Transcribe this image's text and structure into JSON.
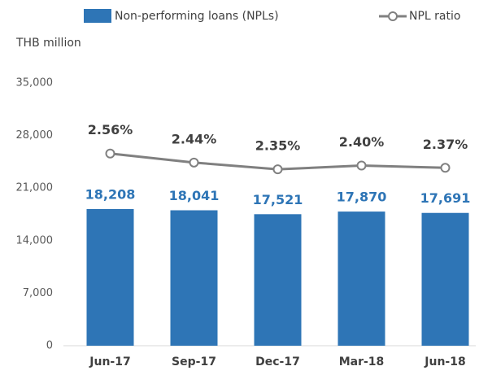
{
  "chart_data": {
    "type": "bar_line",
    "y_label": "THB million",
    "categories": [
      "Jun-17",
      "Sep-17",
      "Dec-17",
      "Mar-18",
      "Jun-18"
    ],
    "series": [
      {
        "name": "Non-performing loans (NPLs)",
        "type": "bar",
        "color": "#2e75b6",
        "values": [
          18208,
          18041,
          17521,
          17870,
          17691
        ],
        "value_labels": [
          "18,208",
          "18,041",
          "17,521",
          "17,870",
          "17,691"
        ]
      },
      {
        "name": "NPL ratio",
        "type": "line",
        "axis": "y2",
        "color": "#808080",
        "values": [
          2.56,
          2.44,
          2.35,
          2.4,
          2.37
        ],
        "value_labels": [
          "2.56%",
          "2.44%",
          "2.35%",
          "2.40%",
          "2.37%"
        ]
      }
    ],
    "ylim": [
      0,
      35000
    ],
    "yticks": [
      0,
      {
        "value": 7000,
        "label": "7,000"
      },
      {
        "value": 14000,
        "label": "14,000"
      },
      {
        "value": 21000,
        "label": "21,000"
      },
      {
        "value": 28000,
        "label": "28,000"
      },
      {
        "value": 35000,
        "label": "35,000"
      }
    ],
    "y2lim": [
      0,
      3.5
    ],
    "grid": false
  }
}
